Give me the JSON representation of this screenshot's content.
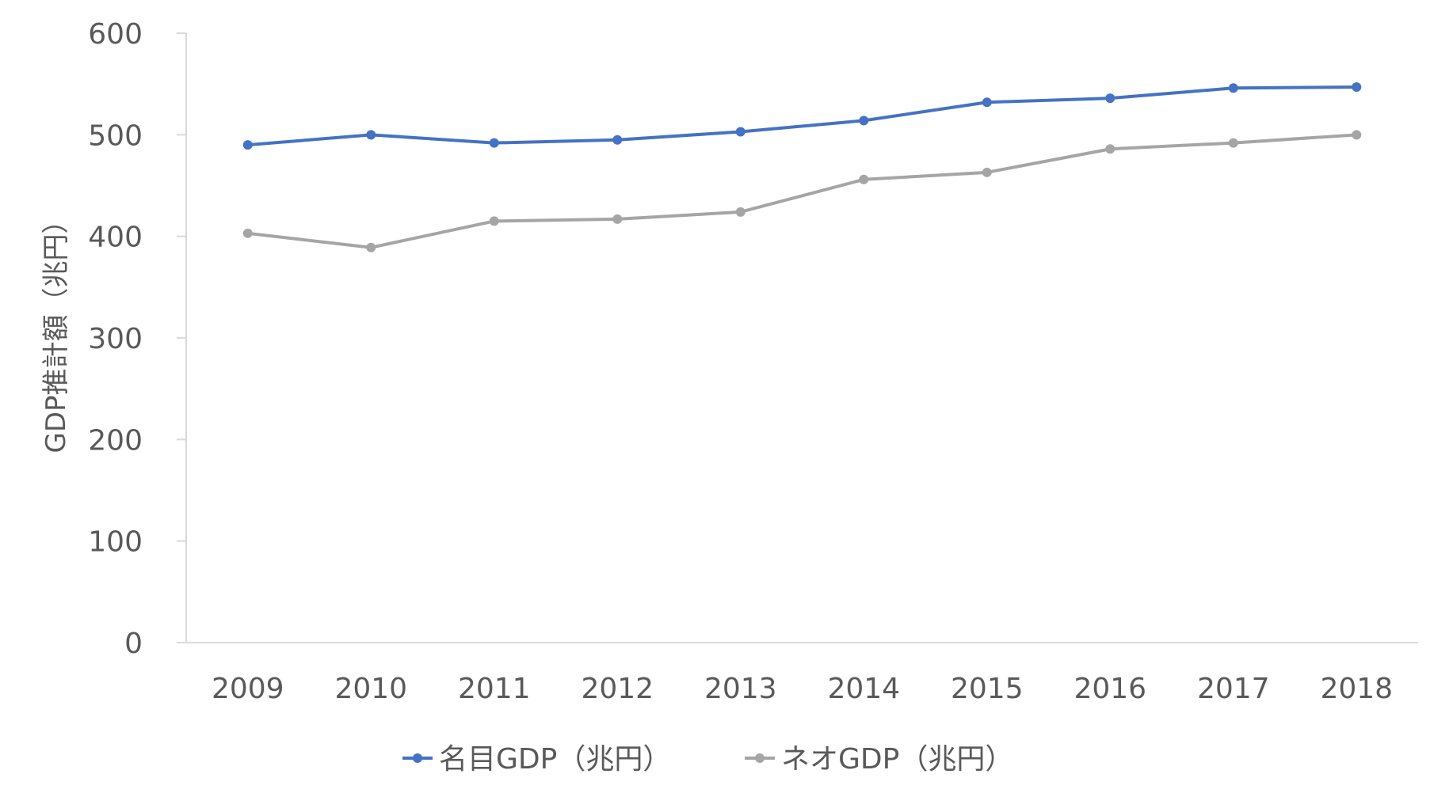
{
  "chart_data": {
    "type": "line",
    "title": "",
    "xlabel": "",
    "ylabel": "GDP推計額（兆円）",
    "ylim": [
      0,
      600
    ],
    "yticks": [
      0,
      100,
      200,
      300,
      400,
      500,
      600
    ],
    "grid": false,
    "legend": "bottom",
    "categories": [
      "2009",
      "2010",
      "2011",
      "2012",
      "2013",
      "2014",
      "2015",
      "2016",
      "2017",
      "2018"
    ],
    "series": [
      {
        "name": "名目GDP（兆円）",
        "color": "#4472C4",
        "values": [
          490,
          500,
          492,
          495,
          503,
          514,
          532,
          536,
          546,
          547
        ]
      },
      {
        "name": "ネオGDP（兆円）",
        "color": "#A5A5A5",
        "values": [
          403,
          389,
          415,
          417,
          424,
          456,
          463,
          486,
          492,
          500
        ]
      }
    ]
  }
}
